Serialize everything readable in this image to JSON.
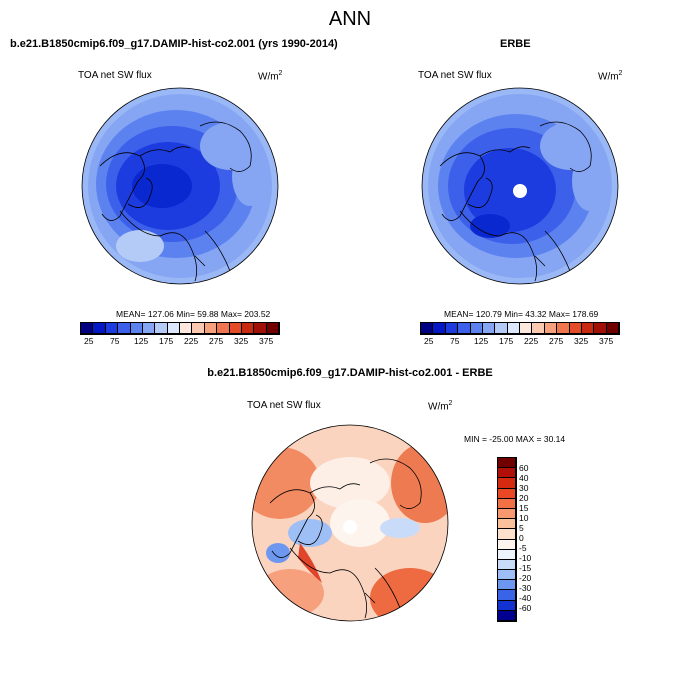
{
  "main_title": "ANN",
  "panels": [
    {
      "title": "b.e21.B1850cmip6.f09_g17.DAMIP-hist-co2.001 (yrs 1990-2014)",
      "variable": "TOA net SW flux",
      "units": "W/m",
      "units_exp": "2",
      "stats": "MEAN= 127.06  Min=  59.88  Max= 203.52"
    },
    {
      "title": "ERBE",
      "variable": "TOA net SW flux",
      "units": "W/m",
      "units_exp": "2",
      "stats": "MEAN= 120.79  Min=  43.32  Max= 178.69"
    },
    {
      "title": "b.e21.B1850cmip6.f09_g17.DAMIP-hist-co2.001 - ERBE",
      "variable": "TOA net SW flux",
      "units": "W/m",
      "units_exp": "2",
      "stats": "MIN = -25.00 MAX =  30.14"
    }
  ],
  "colorbar_horizontal": {
    "colors": [
      "#000080",
      "#0418c8",
      "#1c3ce0",
      "#3c60ea",
      "#5c82f0",
      "#86a6f4",
      "#b4cbf8",
      "#dde8fc",
      "#fde8de",
      "#fbc8b0",
      "#f7a07e",
      "#f07650",
      "#e44c28",
      "#c82a10",
      "#a01006",
      "#700000"
    ],
    "labels": [
      "25",
      "75",
      "125",
      "175",
      "225",
      "275",
      "325",
      "375"
    ]
  },
  "colorbar_vertical": {
    "colors": [
      "#700000",
      "#b01008",
      "#d62a10",
      "#ea4824",
      "#f27046",
      "#f7986e",
      "#fac09c",
      "#fce0cc",
      "#fdf4ee",
      "#eef4fe",
      "#c8dcfa",
      "#9ebef6",
      "#6e98f0",
      "#3a64e8",
      "#1432d0",
      "#000090"
    ],
    "labels": [
      "60",
      "40",
      "30",
      "20",
      "15",
      "10",
      "5",
      "0",
      "-5",
      "-10",
      "-15",
      "-20",
      "-30",
      "-40",
      "-60"
    ]
  },
  "map_colors": {
    "model_base": "#86a6f4",
    "obs_base": "#86a6f4",
    "diff_base": "#fad2bc",
    "coast": "#000000"
  }
}
